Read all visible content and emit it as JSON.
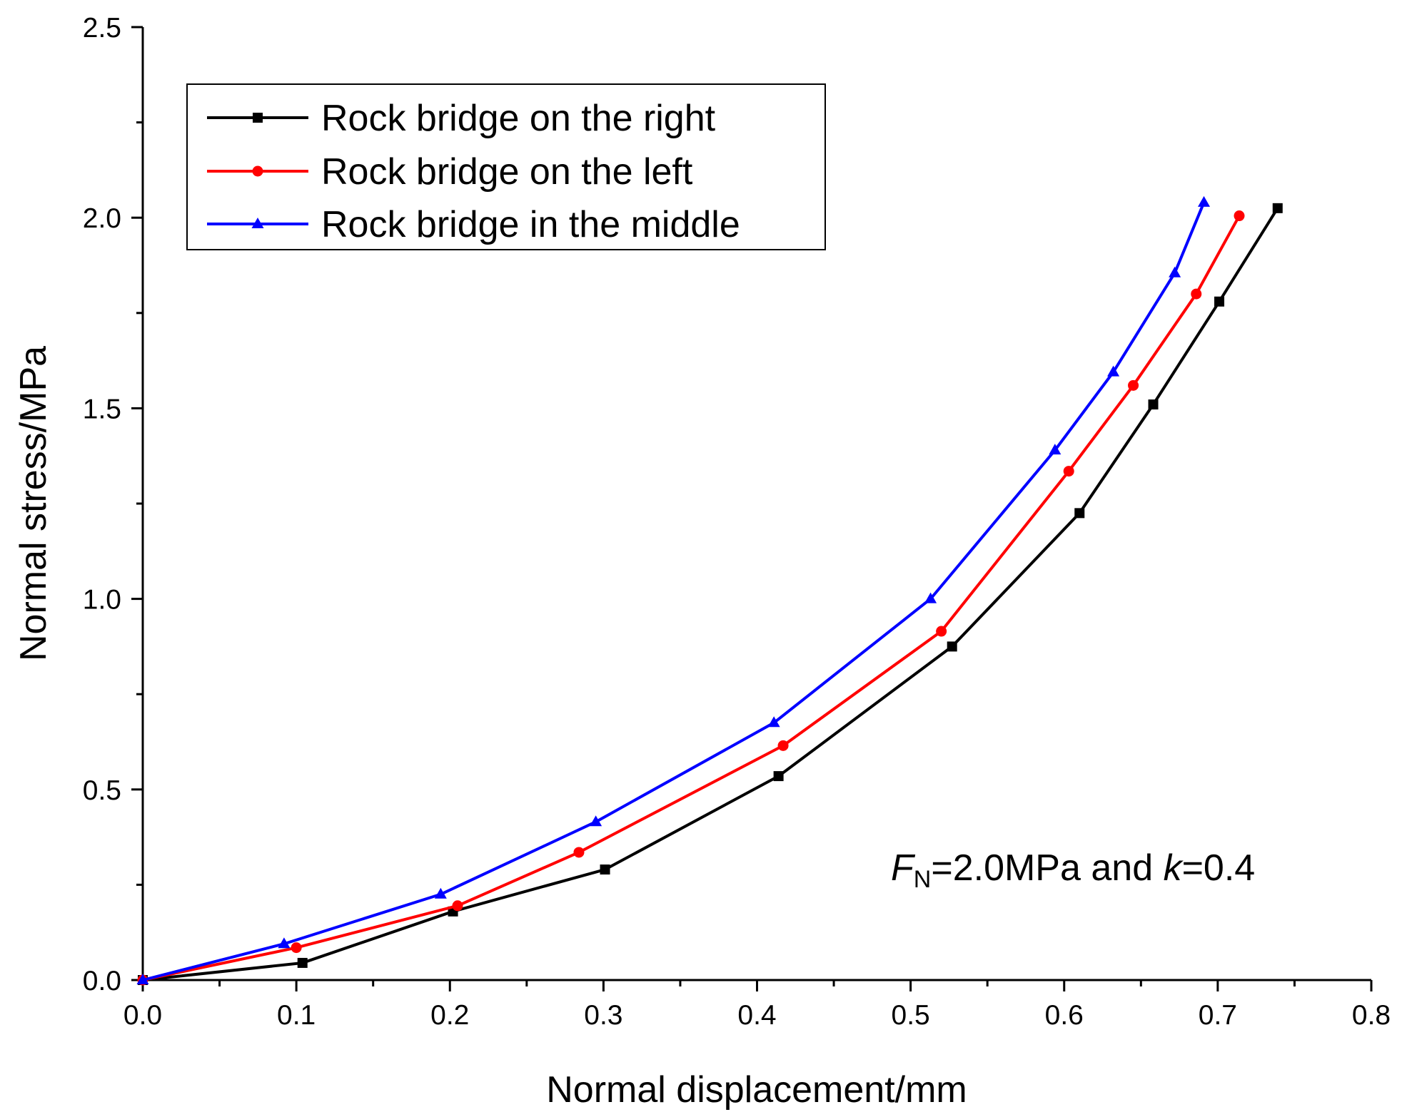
{
  "chart_data": {
    "type": "line",
    "xlabel": "Normal displacement/mm",
    "ylabel": "Normal stress/MPa",
    "xlim": [
      0,
      0.8
    ],
    "ylim": [
      0,
      2.5
    ],
    "x_ticks": [
      "0.0",
      "0.1",
      "0.2",
      "0.3",
      "0.4",
      "0.5",
      "0.6",
      "0.7",
      "0.8"
    ],
    "y_ticks": [
      "0.0",
      "0.5",
      "1.0",
      "1.5",
      "2.0",
      "2.5"
    ],
    "x_tick_values": [
      0,
      0.1,
      0.2,
      0.3,
      0.4,
      0.5,
      0.6,
      0.7,
      0.8
    ],
    "y_tick_values": [
      0,
      0.5,
      1.0,
      1.5,
      2.0,
      2.5
    ],
    "grid": false,
    "legend_position": "top-left",
    "series": [
      {
        "name": "Rock bridge on the right",
        "color": "#000000",
        "marker": "square",
        "x": [
          0.0,
          0.104,
          0.202,
          0.301,
          0.414,
          0.527,
          0.61,
          0.658,
          0.701,
          0.739
        ],
        "y": [
          0.0,
          0.045,
          0.18,
          0.29,
          0.535,
          0.875,
          1.225,
          1.51,
          1.78,
          2.025
        ]
      },
      {
        "name": "Rock bridge on the left",
        "color": "#ff0000",
        "marker": "circle",
        "x": [
          0.0,
          0.1,
          0.205,
          0.284,
          0.417,
          0.52,
          0.603,
          0.645,
          0.686,
          0.714
        ],
        "y": [
          0.0,
          0.085,
          0.195,
          0.335,
          0.615,
          0.915,
          1.335,
          1.56,
          1.8,
          2.005
        ]
      },
      {
        "name": "Rock bridge in the middle",
        "color": "#0000ff",
        "marker": "triangle",
        "x": [
          0.0,
          0.092,
          0.194,
          0.295,
          0.411,
          0.513,
          0.594,
          0.632,
          0.672,
          0.691
        ],
        "y": [
          0.0,
          0.095,
          0.225,
          0.415,
          0.675,
          1.0,
          1.39,
          1.595,
          1.855,
          2.04
        ]
      }
    ],
    "annotation": {
      "symbol": "F",
      "subscript": "N",
      "middle": "=2.0MPa and ",
      "var": "k",
      "tail": "=0.4"
    }
  }
}
